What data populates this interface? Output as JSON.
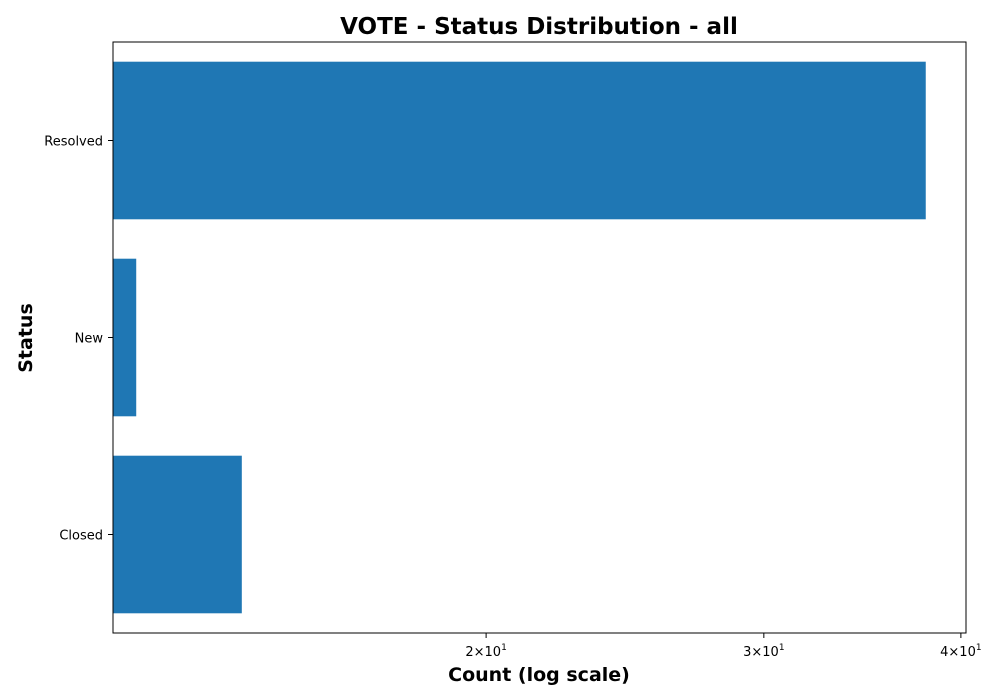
{
  "chart_data": {
    "type": "bar",
    "orientation": "horizontal",
    "title": "VOTE - Status Distribution - all",
    "xlabel": "Count (log scale)",
    "ylabel": "Status",
    "xscale": "log",
    "xlim": [
      11.6,
      40.3
    ],
    "categories": [
      "Resolved",
      "New",
      "Closed"
    ],
    "values": [
      38,
      12,
      14
    ],
    "bar_color": "#1f77b4",
    "x_ticks": [
      {
        "value": 20,
        "base": "2×10",
        "exp": "1"
      },
      {
        "value": 30,
        "base": "3×10",
        "exp": "1"
      },
      {
        "value": 40,
        "base": "4×10",
        "exp": "1"
      }
    ],
    "grid": false,
    "legend": "none"
  }
}
